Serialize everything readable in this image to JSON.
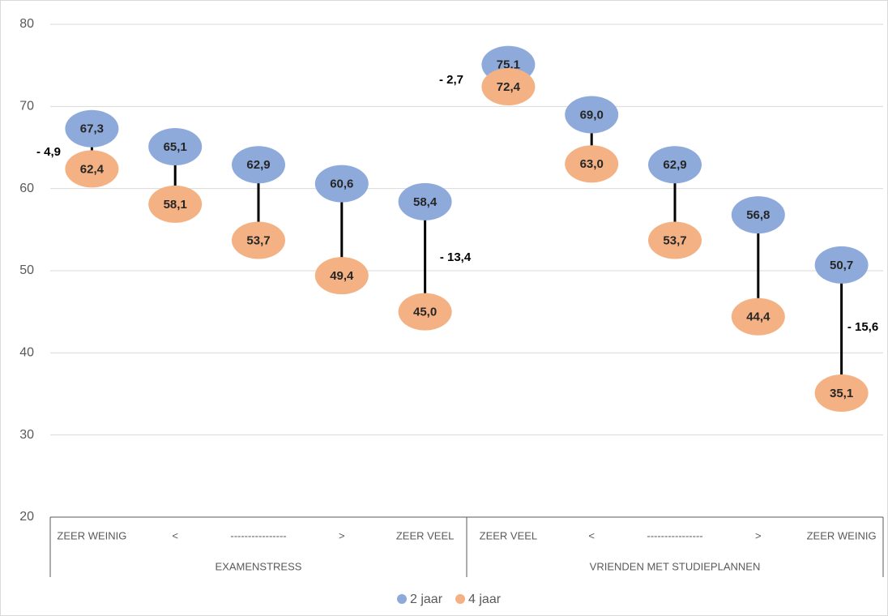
{
  "chart_data": {
    "type": "dumbbell",
    "categories": [
      "ZEER WEINIG",
      "<",
      "----------------",
      ">",
      "ZEER VEEL",
      "ZEER VEEL",
      "<",
      "----------------",
      ">",
      "ZEER WEINIG"
    ],
    "groups": [
      "EXAMENSTRESS",
      "VRIENDEN MET STUDIEPLANNEN"
    ],
    "series": [
      {
        "name": "2 jaar",
        "color": "#8eaadb",
        "values": [
          67.3,
          65.1,
          62.9,
          60.6,
          58.4,
          75.1,
          69.0,
          62.9,
          56.8,
          50.7
        ],
        "value_labels": [
          "67,3",
          "65,1",
          "62,9",
          "60,6",
          "58,4",
          "75,1",
          "69,0",
          "62,9",
          "56,8",
          "50,7"
        ]
      },
      {
        "name": "4 jaar",
        "color": "#f4b183",
        "values": [
          62.4,
          58.1,
          53.7,
          49.4,
          45.0,
          72.4,
          63.0,
          53.7,
          44.4,
          35.1
        ],
        "value_labels": [
          "62,4",
          "58,1",
          "53,7",
          "49,4",
          "45,0",
          "72,4",
          "63,0",
          "53,7",
          "44,4",
          "35,1"
        ]
      }
    ],
    "annotations": [
      "- 4,9",
      "- 13,4",
      "- 2,7",
      "- 15,6"
    ],
    "ylim": [
      20,
      80
    ],
    "yticks": [
      20,
      30,
      40,
      50,
      60,
      70,
      80
    ],
    "grid": true,
    "legend": "bottom"
  }
}
